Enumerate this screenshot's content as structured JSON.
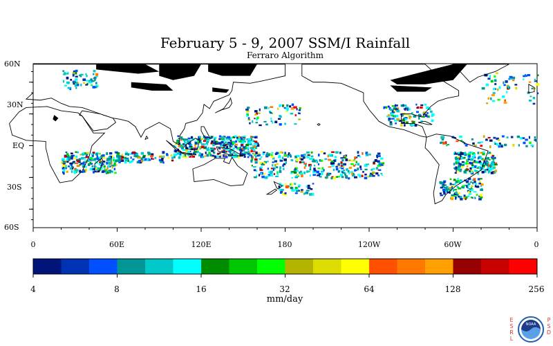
{
  "title": "February 5 - 9, 2007 SSM/I Rainfall",
  "subtitle": "Ferraro Algorithm",
  "lat_axis": {
    "labels": [
      "60N",
      "30N",
      "EQ",
      "30S",
      "60S"
    ],
    "values": [
      60,
      30,
      0,
      -30,
      -60
    ]
  },
  "lon_axis": {
    "labels": [
      "0",
      "60E",
      "120E",
      "180",
      "120W",
      "60W",
      "0"
    ],
    "values": [
      0,
      60,
      120,
      180,
      240,
      300,
      360
    ]
  },
  "colorbar": {
    "units": "mm/day",
    "tick_labels": [
      "4",
      "8",
      "16",
      "32",
      "64",
      "128",
      "256"
    ],
    "colors": [
      "#00147a",
      "#0032b4",
      "#0050ff",
      "#009696",
      "#00c8c8",
      "#00ffff",
      "#008c00",
      "#00c800",
      "#00ff00",
      "#b4b400",
      "#dcdc00",
      "#ffff00",
      "#ff5000",
      "#ff7800",
      "#ffa000",
      "#960000",
      "#c80000",
      "#ff0000"
    ]
  },
  "branding": {
    "left_letters": "ESRL",
    "right_letters": "PSD",
    "logo": "NOAA"
  },
  "icons": {
    "logo": "noaa-logo-icon"
  }
}
